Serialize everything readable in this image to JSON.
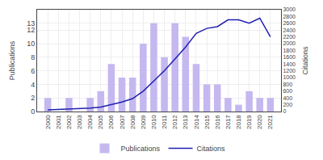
{
  "chart_data": {
    "type": "bar",
    "x": [
      2000,
      2001,
      2002,
      2003,
      2004,
      2005,
      2006,
      2007,
      2008,
      2009,
      2010,
      2011,
      2012,
      2013,
      2014,
      2015,
      2016,
      2017,
      2018,
      2019,
      2020,
      2021
    ],
    "xlim": [
      1999,
      2022
    ],
    "xticks": [
      2000,
      2001,
      2002,
      2003,
      2004,
      2005,
      2006,
      2007,
      2008,
      2009,
      2010,
      2011,
      2012,
      2013,
      2014,
      2015,
      2016,
      2017,
      2018,
      2019,
      2020,
      2021
    ],
    "series": [
      {
        "name": "Publications",
        "type": "bar",
        "color": "#c5b8f0",
        "values": [
          2,
          0,
          2,
          0,
          2,
          3,
          7,
          5,
          5,
          10,
          13,
          8,
          13,
          11,
          7,
          4,
          4,
          2,
          1,
          3,
          2,
          2
        ]
      },
      {
        "name": "Citations",
        "type": "line",
        "color": "#2020b0",
        "axis": "y2",
        "values": [
          50,
          60,
          80,
          90,
          100,
          130,
          200,
          280,
          380,
          600,
          900,
          1200,
          1550,
          1900,
          2300,
          2450,
          2500,
          2700,
          2700,
          2600,
          2750,
          2200
        ]
      }
    ],
    "ylabel": "Publications",
    "y2label": "Citations",
    "ylim": [
      0,
      15
    ],
    "yticks": [
      0,
      2,
      4,
      6,
      8,
      10,
      12,
      13
    ],
    "y2lim": [
      0,
      3000
    ],
    "y2ticks": [
      0,
      200,
      400,
      600,
      800,
      1000,
      1200,
      1400,
      1600,
      1800,
      2000,
      2200,
      2400,
      2600,
      2800,
      3000
    ],
    "grid": true,
    "legend": "bottom"
  }
}
